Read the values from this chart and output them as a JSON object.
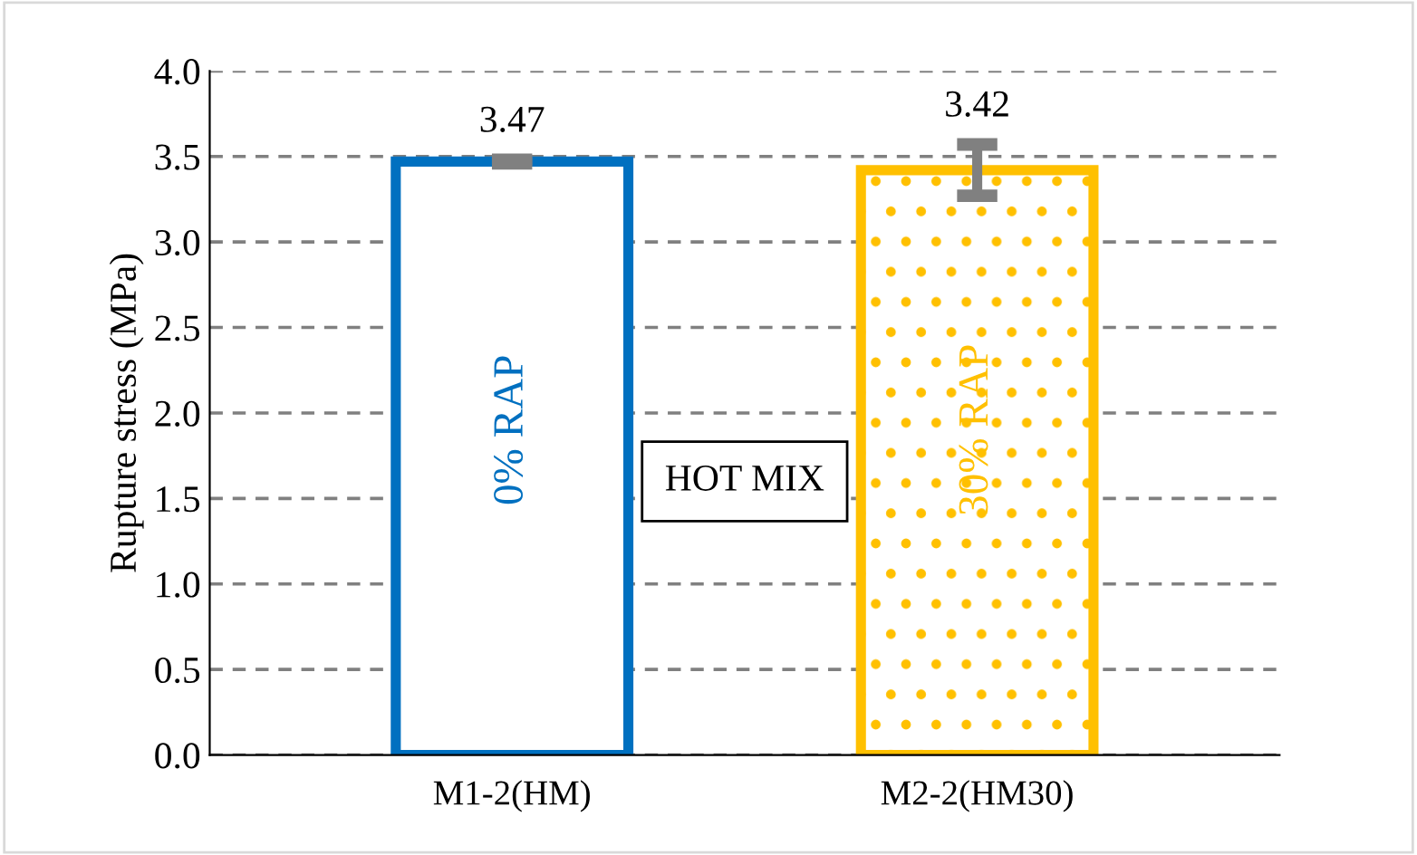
{
  "chart_data": {
    "type": "bar",
    "ylabel": "Rupture stress (MPa)",
    "categories": [
      "M1-2(HM)",
      "M2-2(HM30)"
    ],
    "values": [
      3.47,
      3.42
    ],
    "colors": [
      "#0070c0",
      "#ffc000"
    ],
    "errors": [
      0.01,
      0.15
    ],
    "data_labels": true,
    "ylim": [
      0,
      4
    ],
    "yticks": [
      {
        "value": 0,
        "label": "0.0"
      },
      {
        "value": 0.5,
        "label": "0.5"
      },
      {
        "value": 1,
        "label": "1.0"
      },
      {
        "value": 1.5,
        "label": "1.5"
      },
      {
        "value": 2,
        "label": "2.0"
      },
      {
        "value": 2.5,
        "label": "2.5"
      },
      {
        "value": 3,
        "label": "3.0"
      },
      {
        "value": 3.5,
        "label": "3.5"
      },
      {
        "value": 4,
        "label": "4.0"
      }
    ],
    "grid": "y",
    "annotations": [
      "0% RAP",
      "30% RAP",
      "HOT MIX"
    ]
  }
}
